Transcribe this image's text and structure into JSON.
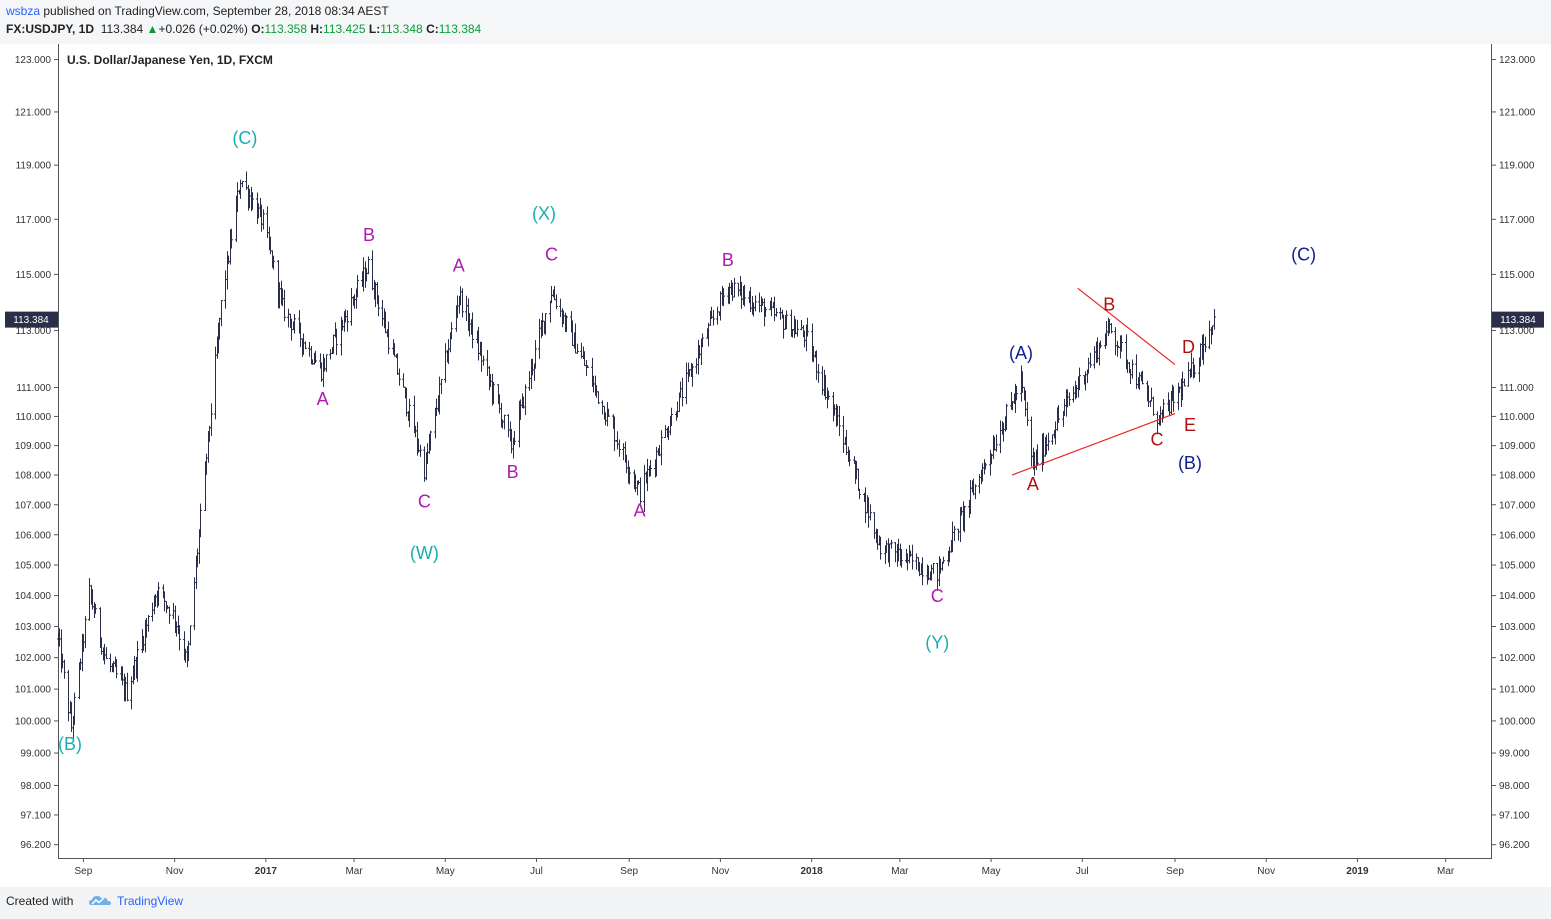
{
  "header": {
    "publisher_user": "wsbza",
    "publisher_rest": " published on TradingView.com, September 28, 2018 08:34 AEST",
    "symbol": "FX:USDJPY, 1D",
    "last": "113.384",
    "change": "+0.026 (+0.02%)",
    "open_label": "O:",
    "open": "113.358",
    "high_label": "H:",
    "high": "113.425",
    "low_label": "L:",
    "low": "113.348",
    "close_label": "C:",
    "close": "113.384",
    "up_arrow": "▲"
  },
  "footer": {
    "created_with": "Created with",
    "brand": "TradingView",
    "logo_icon": "tradingview-cloud-icon"
  },
  "colors": {
    "bars": "#2a2e49",
    "teal": "#19aeb0",
    "magenta": "#b01ab0",
    "navy": "#102090",
    "darkred": "#b01010",
    "trendline": "#ee2222",
    "price_tag": "#2a2e49"
  },
  "chart_data": {
    "type": "ohlc",
    "title": "U.S. Dollar/Japanese Yen, 1D, FXCM",
    "price_scale": "log",
    "y_ticks": [
      "123.000",
      "121.000",
      "119.000",
      "117.000",
      "115.000",
      "113.000",
      "111.000",
      "110.000",
      "109.000",
      "108.000",
      "107.000",
      "106.000",
      "105.000",
      "104.000",
      "103.000",
      "102.000",
      "101.000",
      "100.000",
      "99.000",
      "98.000",
      "97.100",
      "96.200"
    ],
    "x_ticks": [
      {
        "label": "Sep",
        "date": "2016-09-01",
        "bold": false
      },
      {
        "label": "Nov",
        "date": "2016-11-01",
        "bold": false
      },
      {
        "label": "2017",
        "date": "2017-01-01",
        "bold": true
      },
      {
        "label": "Mar",
        "date": "2017-03-01",
        "bold": false
      },
      {
        "label": "May",
        "date": "2017-05-01",
        "bold": false
      },
      {
        "label": "Jul",
        "date": "2017-07-01",
        "bold": false
      },
      {
        "label": "Sep",
        "date": "2017-09-01",
        "bold": false
      },
      {
        "label": "Nov",
        "date": "2017-11-01",
        "bold": false
      },
      {
        "label": "2018",
        "date": "2018-01-01",
        "bold": true
      },
      {
        "label": "Mar",
        "date": "2018-03-01",
        "bold": false
      },
      {
        "label": "May",
        "date": "2018-05-01",
        "bold": false
      },
      {
        "label": "Jul",
        "date": "2018-07-01",
        "bold": false
      },
      {
        "label": "Sep",
        "date": "2018-09-01",
        "bold": false
      },
      {
        "label": "Nov",
        "date": "2018-11-01",
        "bold": false
      },
      {
        "label": "2019",
        "date": "2019-01-01",
        "bold": true
      },
      {
        "label": "Mar",
        "date": "2019-03-01",
        "bold": false
      }
    ],
    "x_range": [
      "2016-08-15",
      "2019-04-01"
    ],
    "y_range": [
      95.8,
      123.6
    ],
    "last_price": "113.384",
    "last_date": "2018-09-27",
    "grid": false,
    "legend": "none",
    "anchors": [
      [
        "2016-08-15",
        102.6
      ],
      [
        "2016-08-24",
        99.8
      ],
      [
        "2016-09-05",
        104.1
      ],
      [
        "2016-09-16",
        101.9
      ],
      [
        "2016-09-30",
        100.9
      ],
      [
        "2016-10-20",
        104.2
      ],
      [
        "2016-11-01",
        103.3
      ],
      [
        "2016-11-09",
        101.8
      ],
      [
        "2016-12-02",
        113.9
      ],
      [
        "2016-12-15",
        118.5
      ],
      [
        "2016-12-30",
        116.9
      ],
      [
        "2017-01-12",
        113.8
      ],
      [
        "2017-02-07",
        111.6
      ],
      [
        "2017-03-10",
        115.3
      ],
      [
        "2017-04-17",
        108.2
      ],
      [
        "2017-05-10",
        114.3
      ],
      [
        "2017-06-14",
        109.0
      ],
      [
        "2017-07-11",
        114.4
      ],
      [
        "2017-09-08",
        107.4
      ],
      [
        "2017-11-06",
        114.6
      ],
      [
        "2017-12-28",
        112.8
      ],
      [
        "2018-02-16",
        105.6
      ],
      [
        "2018-03-26",
        104.7
      ],
      [
        "2018-05-21",
        111.2
      ],
      [
        "2018-05-29",
        108.3
      ],
      [
        "2018-07-19",
        113.1
      ],
      [
        "2018-08-21",
        109.9
      ],
      [
        "2018-09-10",
        111.3
      ],
      [
        "2018-09-27",
        113.4
      ]
    ],
    "annotations": [
      {
        "text": "(B)",
        "date": "2016-08-23",
        "price": 99.1,
        "color": "teal"
      },
      {
        "text": "(C)",
        "date": "2016-12-18",
        "price": 119.8,
        "color": "teal"
      },
      {
        "text": "A",
        "date": "2017-02-08",
        "price": 110.4,
        "color": "magenta"
      },
      {
        "text": "B",
        "date": "2017-03-11",
        "price": 116.2,
        "color": "magenta"
      },
      {
        "text": "C",
        "date": "2017-04-17",
        "price": 106.9,
        "color": "magenta"
      },
      {
        "text": "(W)",
        "date": "2017-04-17",
        "price": 105.2,
        "color": "teal"
      },
      {
        "text": "A",
        "date": "2017-05-10",
        "price": 115.1,
        "color": "magenta"
      },
      {
        "text": "B",
        "date": "2017-06-15",
        "price": 107.9,
        "color": "magenta"
      },
      {
        "text": "(X)",
        "date": "2017-07-06",
        "price": 117.0,
        "color": "teal"
      },
      {
        "text": "C",
        "date": "2017-07-11",
        "price": 115.5,
        "color": "magenta"
      },
      {
        "text": "A",
        "date": "2017-09-08",
        "price": 106.6,
        "color": "magenta"
      },
      {
        "text": "B",
        "date": "2017-11-06",
        "price": 115.3,
        "color": "magenta"
      },
      {
        "text": "C",
        "date": "2018-03-26",
        "price": 103.8,
        "color": "magenta"
      },
      {
        "text": "(Y)",
        "date": "2018-03-26",
        "price": 102.3,
        "color": "teal"
      },
      {
        "text": "(A)",
        "date": "2018-05-21",
        "price": 112.0,
        "color": "navy"
      },
      {
        "text": "A",
        "date": "2018-05-29",
        "price": 107.5,
        "color": "darkred"
      },
      {
        "text": "B",
        "date": "2018-07-19",
        "price": 113.7,
        "color": "darkred"
      },
      {
        "text": "C",
        "date": "2018-08-20",
        "price": 109.0,
        "color": "darkred"
      },
      {
        "text": "D",
        "date": "2018-09-10",
        "price": 112.2,
        "color": "darkred"
      },
      {
        "text": "E",
        "date": "2018-09-11",
        "price": 109.5,
        "color": "darkred"
      },
      {
        "text": "(B)",
        "date": "2018-09-11",
        "price": 108.2,
        "color": "navy"
      },
      {
        "text": "(C)",
        "date": "2018-11-26",
        "price": 115.5,
        "color": "navy"
      }
    ],
    "trendlines": [
      {
        "from": [
          "2018-05-15",
          108.0
        ],
        "to": [
          "2018-09-01",
          110.1
        ],
        "color": "trendline"
      },
      {
        "from": [
          "2018-06-28",
          114.5
        ],
        "to": [
          "2018-09-01",
          111.8
        ],
        "color": "trendline"
      }
    ]
  }
}
